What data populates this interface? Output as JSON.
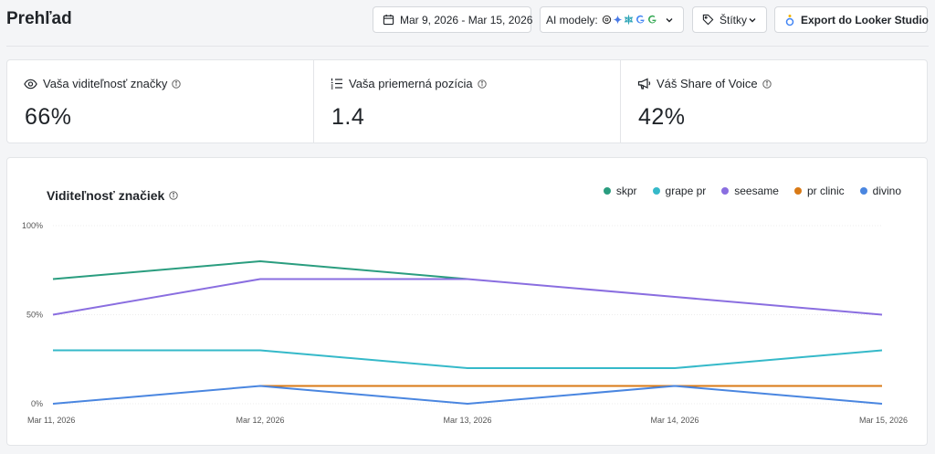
{
  "header": {
    "title": "Prehľad",
    "date_range": "Mar 9, 2026 - Mar 15, 2026",
    "models_label": "AI modely:",
    "model_icons": [
      "openai-icon",
      "gemini-icon",
      "perplexity-icon",
      "google-icon",
      "google-icon"
    ],
    "tags_label": "Štítky",
    "export_label": "Export do Looker Studio"
  },
  "stats": [
    {
      "icon": "eye-icon",
      "label": "Vaša viditeľnosť značky",
      "value": "66%"
    },
    {
      "icon": "list-ordered-icon",
      "label": "Vaša priemerná pozícia",
      "value": "1.4"
    },
    {
      "icon": "megaphone-icon",
      "label": "Váš Share of Voice",
      "value": "42%"
    }
  ],
  "chart": {
    "title": "Viditeľnosť značiek"
  },
  "chart_data": {
    "type": "line",
    "categories": [
      "Mar 11, 2026",
      "Mar 12, 2026",
      "Mar 13, 2026",
      "Mar 14, 2026",
      "Mar 15, 2026"
    ],
    "ylim": [
      0,
      100
    ],
    "yticks": [
      {
        "v": 0,
        "label": "0%"
      },
      {
        "v": 50,
        "label": "50%"
      },
      {
        "v": 100,
        "label": "100%"
      }
    ],
    "grid": true,
    "legend_position": "top-right",
    "series": [
      {
        "name": "skpr",
        "color": "#2a9d7f",
        "values": [
          70,
          80,
          70,
          null,
          null
        ]
      },
      {
        "name": "grape pr",
        "color": "#35b9c9",
        "values": [
          30,
          30,
          20,
          20,
          30
        ]
      },
      {
        "name": "seesame",
        "color": "#8a6ee0",
        "values": [
          50,
          70,
          70,
          60,
          50
        ]
      },
      {
        "name": "pr clinic",
        "color": "#d97a16",
        "values": [
          null,
          10,
          10,
          10,
          10
        ]
      },
      {
        "name": "divino",
        "color": "#4a86e0",
        "values": [
          0,
          10,
          0,
          10,
          0
        ]
      }
    ]
  }
}
